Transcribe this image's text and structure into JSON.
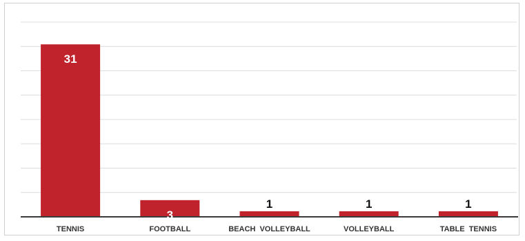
{
  "chart_data": {
    "type": "bar",
    "categories": [
      "TENNIS",
      "FOOTBALL",
      "BEACH  VOLLEYBALL",
      "VOLLEYBALL",
      "TABLE  TENNIS"
    ],
    "values": [
      31,
      3,
      1,
      1,
      1
    ],
    "ylim": [
      0,
      35
    ],
    "grid": true,
    "legend": "none",
    "colors": {
      "bar": "#c0232c",
      "label_inside": "#ffffff",
      "label_outside": "#111111"
    }
  }
}
